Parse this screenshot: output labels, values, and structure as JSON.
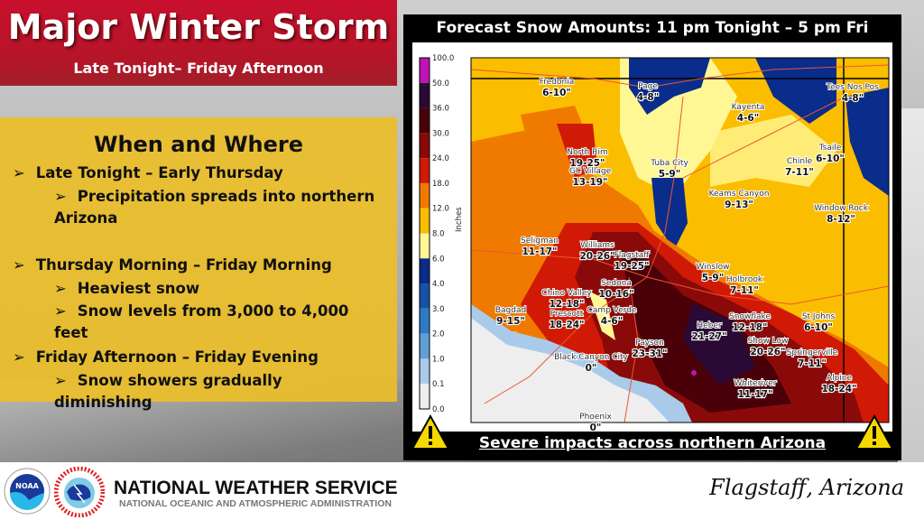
{
  "header": {
    "title": "Major Winter Storm",
    "subtitle": "Late Tonight– Friday Afternoon"
  },
  "when_where": {
    "heading": "When and Where",
    "sections": [
      {
        "label": "Late Tonight – Early Thursday",
        "items": [
          "Precipitation spreads into northern Arizona"
        ]
      },
      {
        "label": "Thursday Morning – Friday Morning",
        "items": [
          "Heaviest snow",
          "Snow levels from 3,000 to 4,000 feet"
        ]
      },
      {
        "label": "Friday Afternoon – Friday Evening",
        "items": [
          "Snow showers gradually diminishing"
        ]
      }
    ]
  },
  "map": {
    "title": "Forecast Snow Amounts: 11 pm Tonight – 5 pm Fri",
    "bottom_text": "Severe impacts across northern Arizona",
    "colorbar_label": "Inches",
    "colorbar": [
      {
        "value": "100.0",
        "color": "#c013b5"
      },
      {
        "value": "50.0",
        "color": "#2a0a35"
      },
      {
        "value": "36.0",
        "color": "#4a0008"
      },
      {
        "value": "30.0",
        "color": "#8a0a0a"
      },
      {
        "value": "24.0",
        "color": "#d01a05"
      },
      {
        "value": "18.0",
        "color": "#f07a00"
      },
      {
        "value": "12.0",
        "color": "#fbbd00"
      },
      {
        "value": "8.0",
        "color": "#fff794"
      },
      {
        "value": "6.0",
        "color": "#0a2c8a"
      },
      {
        "value": "4.0",
        "color": "#1552a8"
      },
      {
        "value": "3.0",
        "color": "#2e7ac4"
      },
      {
        "value": "2.0",
        "color": "#5f9fd6"
      },
      {
        "value": "1.0",
        "color": "#a9cbe9"
      },
      {
        "value": "0.1",
        "color": "#eeeeee"
      },
      {
        "value": "0.0",
        "color": ""
      }
    ],
    "cities": [
      {
        "name": "Fredonia",
        "amount": "6-10\""
      },
      {
        "name": "Page",
        "amount": "4-8\""
      },
      {
        "name": "Kayenta",
        "amount": "4-6\""
      },
      {
        "name": "Tees Nos Pos",
        "amount": "4-8\""
      },
      {
        "name": "North Rim",
        "amount": "19-25\""
      },
      {
        "name": "GC Village",
        "amount": "13-19\""
      },
      {
        "name": "Tuba City",
        "amount": "5-9\""
      },
      {
        "name": "Tsaile",
        "amount": "6-10\""
      },
      {
        "name": "Chinle",
        "amount": "7-11\""
      },
      {
        "name": "Keams Canyon",
        "amount": "9-13\""
      },
      {
        "name": "Window Rock",
        "amount": "8-12\""
      },
      {
        "name": "Seligman",
        "amount": "11-17\""
      },
      {
        "name": "Williams",
        "amount": "20-26\""
      },
      {
        "name": "Flagstaff",
        "amount": "19-25\""
      },
      {
        "name": "Winslow",
        "amount": "5-9\""
      },
      {
        "name": "Holbrook",
        "amount": "7-11\""
      },
      {
        "name": "Sedona",
        "amount": "10-16\""
      },
      {
        "name": "Chino Valley",
        "amount": "12-18\""
      },
      {
        "name": "Prescott",
        "amount": "18-24\""
      },
      {
        "name": "Camp Verde",
        "amount": "4-6\""
      },
      {
        "name": "Bagdad",
        "amount": "9-15\""
      },
      {
        "name": "Snowflake",
        "amount": "12-18\""
      },
      {
        "name": "St Johns",
        "amount": "6-10\""
      },
      {
        "name": "Heber",
        "amount": "21-27\""
      },
      {
        "name": "Show Low",
        "amount": "20-26\""
      },
      {
        "name": "Springerville",
        "amount": "7-11\""
      },
      {
        "name": "Payson",
        "amount": "23-31\""
      },
      {
        "name": "Black Canyon City",
        "amount": "0\""
      },
      {
        "name": "Whiteriver",
        "amount": "11-17\""
      },
      {
        "name": "Alpine",
        "amount": "18-24\""
      },
      {
        "name": "Phoenix",
        "amount": "0\""
      }
    ],
    "warning_icon": "warning-triangle-icon"
  },
  "footer": {
    "agency": "NATIONAL WEATHER SERVICE",
    "parent_agency": "NATIONAL OCEANIC AND ATMOSPHERIC ADMINISTRATION",
    "location": "Flagstaff, Arizona",
    "logos": {
      "noaa": "NOAA",
      "nws": "NATIONAL WEATHER SERVICE"
    }
  }
}
